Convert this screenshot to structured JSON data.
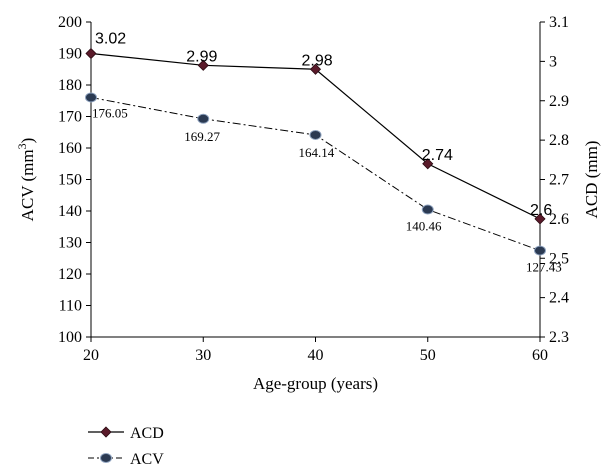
{
  "chart_data": {
    "type": "line",
    "x": [
      20,
      30,
      40,
      50,
      60
    ],
    "xlabel": "Age-group (years)",
    "ylabel_left": "ACV (mm3)",
    "ylabel_left_main": "ACV (mm",
    "ylabel_left_sup": "3",
    "ylabel_left_close": ")",
    "ylabel_right": "ACD (mm)",
    "xlim": [
      20,
      60
    ],
    "ylim_left": [
      100,
      200
    ],
    "ylim_right": [
      2.3,
      3.1
    ],
    "x_ticks": [
      20,
      30,
      40,
      50,
      60
    ],
    "y_left_ticks": [
      100,
      110,
      120,
      130,
      140,
      150,
      160,
      170,
      180,
      190,
      200
    ],
    "y_right_ticks": [
      "2.3",
      "2.4",
      "2.5",
      "2.6",
      "2.7",
      "2.8",
      "2.9",
      "3",
      "3.1"
    ],
    "grid": false,
    "legend": "bottom-left",
    "series": [
      {
        "name": "ACD",
        "axis": "right",
        "values": [
          3.02,
          2.99,
          2.98,
          2.74,
          2.6
        ],
        "labels": [
          "3.02",
          "2.99",
          "2.98",
          "2.74",
          "2.6"
        ],
        "color": "#5a1a2a",
        "line_style": "solid",
        "marker": "diamond"
      },
      {
        "name": "ACV",
        "axis": "left",
        "values": [
          176.05,
          169.27,
          164.14,
          140.46,
          127.43
        ],
        "labels": [
          "176.05",
          "169.27",
          "164.14",
          "140.46",
          "127.43"
        ],
        "color": "#2b3a52",
        "line_style": "dashdot",
        "marker": "circle"
      }
    ]
  }
}
